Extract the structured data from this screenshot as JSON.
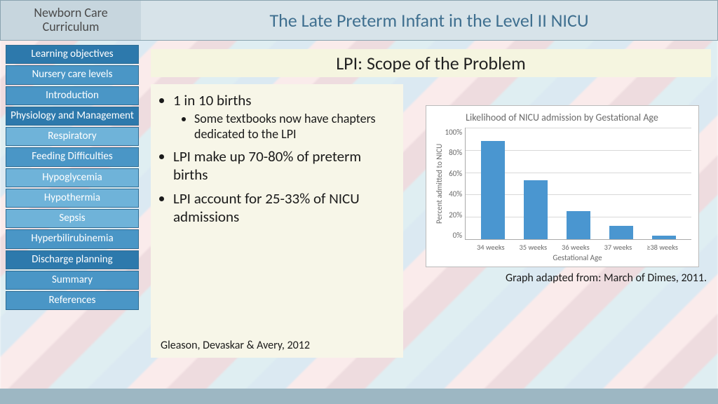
{
  "header": {
    "left_line1": "Newborn Care",
    "left_line2": "Curriculum",
    "title": "The Late Preterm Infant in the Level II NICU"
  },
  "sidebar": {
    "items": [
      {
        "label": "Learning objectives",
        "shade": "c-dark"
      },
      {
        "label": "Nursery care levels",
        "shade": "c-med"
      },
      {
        "label": "Introduction",
        "shade": "c-med"
      },
      {
        "label": "Physiology and Management",
        "shade": "c-dark"
      },
      {
        "label": "Respiratory",
        "shade": "c-light"
      },
      {
        "label": "Feeding Difficulties",
        "shade": "c-med"
      },
      {
        "label": "Hypoglycemia",
        "shade": "c-light"
      },
      {
        "label": "Hypothermia",
        "shade": "c-light"
      },
      {
        "label": "Sepsis",
        "shade": "c-light"
      },
      {
        "label": "Hyperbilirubinemia",
        "shade": "c-med"
      },
      {
        "label": "Discharge planning",
        "shade": "c-dark"
      },
      {
        "label": "Summary",
        "shade": "c-med"
      },
      {
        "label": "References",
        "shade": "c-med"
      }
    ]
  },
  "content": {
    "title": "LPI:  Scope of the Problem",
    "bullets": {
      "b1": "1 in 10 births",
      "b1a": "Some textbooks now have chapters dedicated to the LPI",
      "b2": "LPI make up 70-80% of preterm births",
      "b3": "LPI account for 25-33% of NICU admissions"
    },
    "citation_bottom": "Gleason, Devaskar & Avery, 2012",
    "chart": {
      "type": "bar",
      "title": "Likelihood of NICU admission by Gestational Age",
      "y_label": "Percent admitted to NICU",
      "x_label": "Gestational Age",
      "y_ticks": [
        "100%",
        "80%",
        "60%",
        "40%",
        "20%",
        "0%"
      ],
      "ylim": [
        0,
        100
      ],
      "categories": [
        "34 weeks",
        "35 weeks",
        "36 weeks",
        "37 weeks",
        "≥38 weeks"
      ],
      "values": [
        88,
        53,
        25,
        12,
        3
      ],
      "bar_color": "#4a96d0",
      "grid_color": "#d8d8d8",
      "background_color": "#ffffff",
      "title_fontsize": 14,
      "axis_fontsize": 11
    },
    "chart_caption": "Graph adapted from: March of Dimes, 2011."
  }
}
